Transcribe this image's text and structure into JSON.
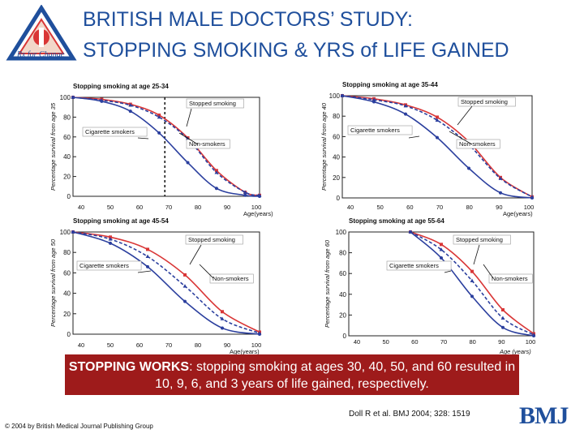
{
  "header": {
    "title_line1": "BRITISH MALE DOCTORS’ STUDY:",
    "title_line2": "STOPPING SMOKING & YRS of LIFE GAINED",
    "logo_text": "Rx for Change"
  },
  "banner": {
    "lead": "STOPPING WORKS",
    "rest": ": stopping smoking at ages 30, 40, 50, and 60 resulted in 10, 9, 6, and 3 years of life gained, respectively."
  },
  "footer": {
    "reference": "Doll R et al. BMJ 2004; 328: 1519",
    "copyright": "© 2004 by British Medical Journal Publishing Group",
    "bmj_logo": "BMJ"
  },
  "colors": {
    "title": "#1f4f9c",
    "smokers": "#2b3f9e",
    "nonsmokers": "#d93636",
    "stopped": "#2b3f9e",
    "banner_bg": "#9e1b1b"
  },
  "chart_data": [
    {
      "type": "line",
      "title": "Stopping smoking at age 25-34",
      "ylabel": "Percentage survival from age 35",
      "xlabel": "",
      "xlim": [
        35,
        100
      ],
      "ylim": [
        0,
        100
      ],
      "x_ticks": [
        "40",
        "50",
        "60",
        "70",
        "80",
        "90",
        "100"
      ],
      "y_ticks": [
        "0",
        "20",
        "40",
        "60",
        "80",
        "100"
      ],
      "x_unit_label": "Age(years)",
      "stop_age": 35,
      "annotations": [
        "Stopped smoking",
        "Cigarette smokers",
        "Non-smokers"
      ],
      "x": [
        35,
        45,
        55,
        65,
        75,
        85,
        95,
        100
      ],
      "series": [
        {
          "key": "nonsmokers",
          "values": [
            100,
            98,
            93,
            82,
            59,
            26,
            4,
            1
          ]
        },
        {
          "key": "stopped",
          "values": [
            100,
            97,
            92,
            80,
            58,
            24,
            4,
            1
          ]
        },
        {
          "key": "smokers",
          "values": [
            100,
            96,
            86,
            64,
            34,
            8,
            1,
            0
          ]
        }
      ]
    },
    {
      "type": "line",
      "title": "Stopping smoking at age 35-44",
      "ylabel": "Percentage survival from age 40",
      "xlabel": "",
      "xlim": [
        40,
        100
      ],
      "ylim": [
        0,
        100
      ],
      "x_ticks": [
        "40",
        "50",
        "60",
        "70",
        "80",
        "90",
        "100"
      ],
      "y_ticks": [
        "0",
        "20",
        "40",
        "60",
        "80",
        "100"
      ],
      "x_unit_label": "Age(years)",
      "stop_age": 40,
      "annotations": [
        "Stopped smoking",
        "Cigarette smokers",
        "Non-smokers"
      ],
      "x": [
        40,
        50,
        60,
        70,
        80,
        90,
        100
      ],
      "series": [
        {
          "key": "nonsmokers",
          "values": [
            100,
            97,
            91,
            79,
            55,
            20,
            1
          ]
        },
        {
          "key": "stopped",
          "values": [
            100,
            96,
            90,
            76,
            52,
            19,
            1
          ]
        },
        {
          "key": "smokers",
          "values": [
            100,
            94,
            82,
            59,
            29,
            5,
            0
          ]
        }
      ]
    },
    {
      "type": "line",
      "title": "Stopping smoking at age 45-54",
      "ylabel": "Percentage survival from age 50",
      "xlabel": "",
      "xlim": [
        50,
        100
      ],
      "ylim": [
        0,
        100
      ],
      "x_ticks": [
        "40",
        "50",
        "60",
        "70",
        "80",
        "90",
        "100"
      ],
      "y_ticks": [
        "0",
        "20",
        "40",
        "60",
        "80",
        "100"
      ],
      "x_unit_label": "Age(years)",
      "stop_age": 50,
      "annotations": [
        "Stopped smoking",
        "Cigarette smokers",
        "Non-smokers"
      ],
      "x": [
        50,
        60,
        70,
        80,
        90,
        100
      ],
      "series": [
        {
          "key": "nonsmokers",
          "values": [
            100,
            95,
            83,
            58,
            22,
            2
          ]
        },
        {
          "key": "stopped",
          "values": [
            100,
            93,
            76,
            47,
            15,
            1
          ]
        },
        {
          "key": "smokers",
          "values": [
            100,
            89,
            66,
            32,
            6,
            0
          ]
        }
      ]
    },
    {
      "type": "line",
      "title": "Stopping smoking at age 55-64",
      "ylabel": "Percentage survival from age 60",
      "xlabel": "Age (years)",
      "xlim": [
        40,
        100
      ],
      "ylim": [
        0,
        100
      ],
      "x_ticks": [
        "40",
        "50",
        "60",
        "70",
        "80",
        "90",
        "100"
      ],
      "y_ticks": [
        "0",
        "20",
        "40",
        "60",
        "80",
        "100"
      ],
      "x_unit_label": "Age (years)",
      "stop_age": 60,
      "annotations": [
        "Stopped smoking",
        "Cigarette smokers",
        "Non-smokers"
      ],
      "x": [
        60,
        70,
        80,
        90,
        100
      ],
      "series": [
        {
          "key": "nonsmokers",
          "values": [
            100,
            88,
            62,
            25,
            2
          ]
        },
        {
          "key": "stopped",
          "values": [
            100,
            83,
            53,
            17,
            1
          ]
        },
        {
          "key": "smokers",
          "values": [
            100,
            75,
            38,
            8,
            0
          ]
        }
      ]
    }
  ]
}
